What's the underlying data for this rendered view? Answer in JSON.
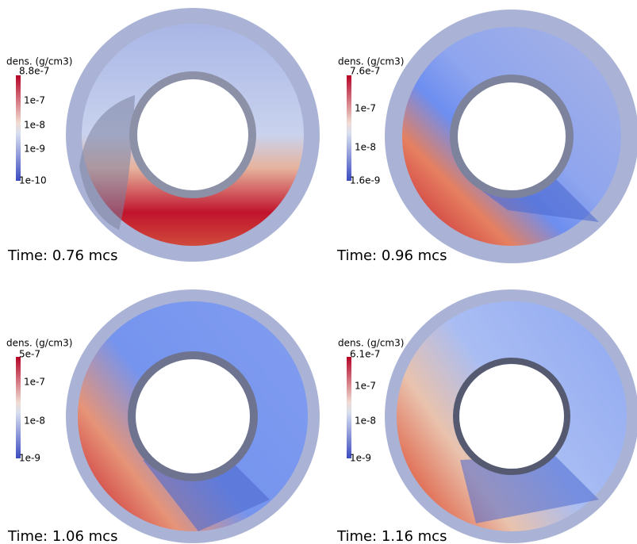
{
  "panels": [
    {
      "colorbar": {
        "label": "dens. (g/cm3)",
        "ticks": [
          "8.8e-7",
          "1e-7",
          "1e-8",
          "1e-9",
          "1e-10"
        ]
      },
      "time": "Time: 0.76 mcs"
    },
    {
      "colorbar": {
        "label": "dens. (g/cm3)",
        "ticks": [
          "7.6e-7",
          "1e-7",
          "1e-8",
          "1.6e-9"
        ]
      },
      "time": "Time: 0.96 mcs"
    },
    {
      "colorbar": {
        "label": "dens. (g/cm3)",
        "ticks": [
          "5e-7",
          "1e-7",
          "1e-8",
          "1e-9"
        ]
      },
      "time": "Time: 1.06 mcs"
    },
    {
      "colorbar": {
        "label": "dens. (g/cm3)",
        "ticks": [
          "6.1e-7",
          "1e-7",
          "1e-8",
          "1e-9"
        ]
      },
      "time": "Time: 1.16 mcs"
    }
  ]
}
